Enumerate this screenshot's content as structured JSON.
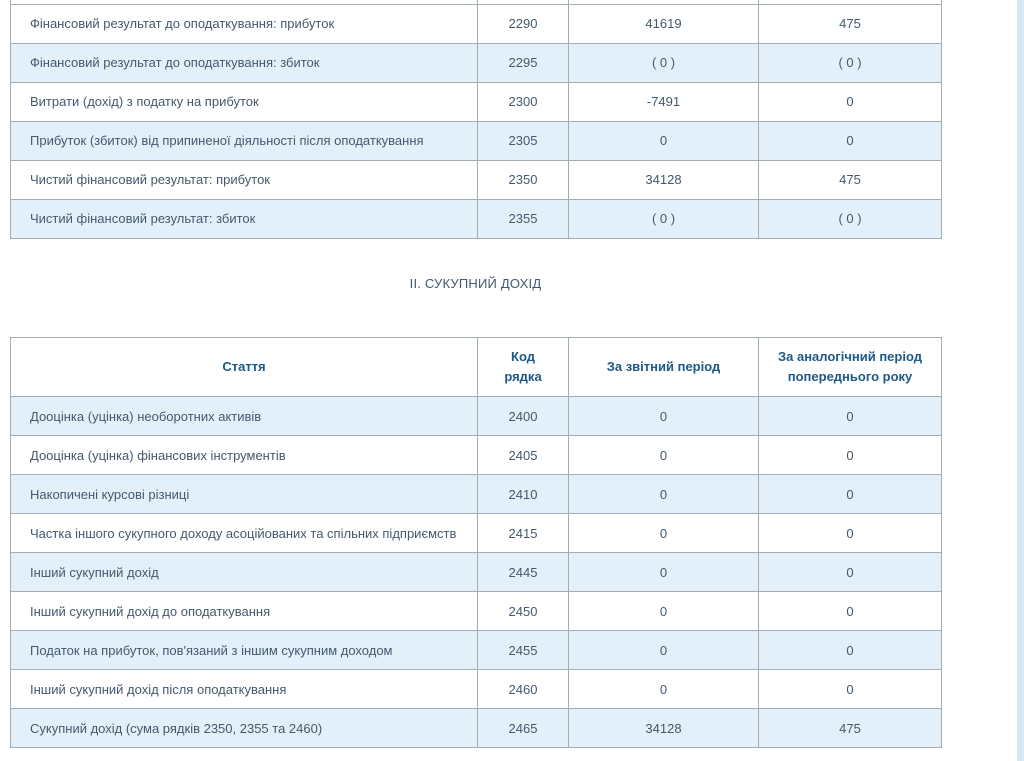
{
  "section_title": "ІІ. СУКУПНИЙ ДОХІД",
  "table1": {
    "rows": [
      {
        "label": "Фінансовий результат до оподаткування: прибуток",
        "code": "2290",
        "current": "41619",
        "previous": "475"
      },
      {
        "label": "Фінансовий результат до оподаткування: збиток",
        "code": "2295",
        "current": "( 0 )",
        "previous": "( 0 )"
      },
      {
        "label": "Витрати (дохід) з податку на прибуток",
        "code": "2300",
        "current": "-7491",
        "previous": "0"
      },
      {
        "label": "Прибуток (збиток) від припиненої діяльності після оподаткування",
        "code": "2305",
        "current": "0",
        "previous": "0"
      },
      {
        "label": "Чистий фінансовий результат: прибуток",
        "code": "2350",
        "current": "34128",
        "previous": "475"
      },
      {
        "label": "Чистий фінансовий результат: збиток",
        "code": "2355",
        "current": "( 0 )",
        "previous": "( 0 )"
      }
    ]
  },
  "table2": {
    "header": {
      "article": "Стаття",
      "code": "Код рядка",
      "current": "За звітний період",
      "previous": "За аналогічний період попереднього року"
    },
    "rows": [
      {
        "label": "Дооцінка (уцінка) необоротних активів",
        "code": "2400",
        "current": "0",
        "previous": "0"
      },
      {
        "label": "Дооцінка (уцінка) фінансових інструментів",
        "code": "2405",
        "current": "0",
        "previous": "0"
      },
      {
        "label": "Накопичені курсові різниці",
        "code": "2410",
        "current": "0",
        "previous": "0"
      },
      {
        "label": "Частка іншого сукупного доходу асоційованих та спільних підприємств",
        "code": "2415",
        "current": "0",
        "previous": "0"
      },
      {
        "label": "Інший сукупний дохід",
        "code": "2445",
        "current": "0",
        "previous": "0"
      },
      {
        "label": "Інший сукупний дохід до оподаткування",
        "code": "2450",
        "current": "0",
        "previous": "0"
      },
      {
        "label": "Податок на прибуток, пов'язаний з іншим сукупним доходом",
        "code": "2455",
        "current": "0",
        "previous": "0"
      },
      {
        "label": "Інший сукупний дохід після оподаткування",
        "code": "2460",
        "current": "0",
        "previous": "0"
      },
      {
        "label": "Сукупний дохід (сума рядків 2350, 2355 та 2460)",
        "code": "2465",
        "current": "34128",
        "previous": "475"
      }
    ]
  },
  "colors": {
    "stripe": "#e3f0fa",
    "border": "#a3adb4",
    "body_text": "#44596e",
    "header_text": "#1d5a89",
    "edge_strip": "#d6e8f4"
  }
}
